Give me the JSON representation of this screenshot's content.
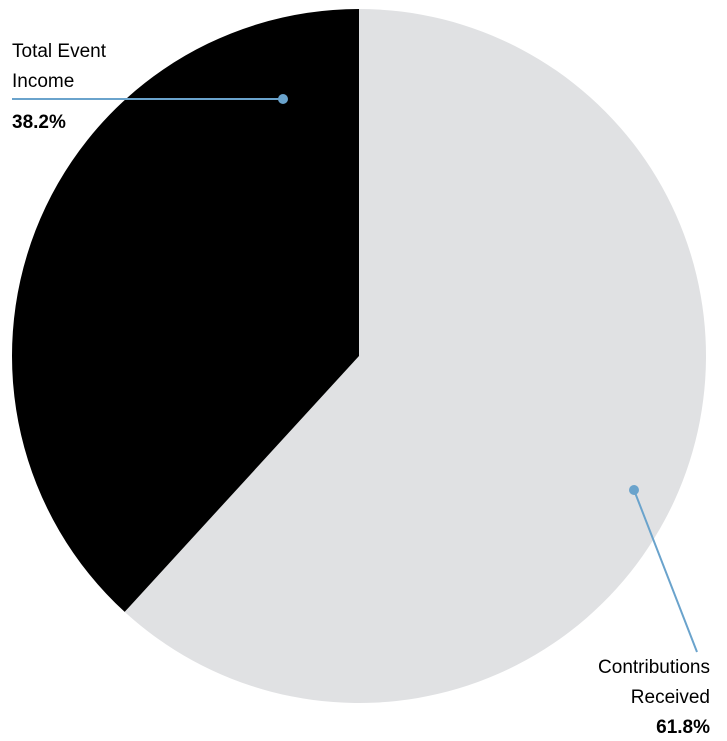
{
  "chart_data": {
    "type": "pie",
    "slices": [
      {
        "label_lines": [
          "Contributions",
          "Received"
        ],
        "value": 61.8,
        "value_label": "61.8%",
        "color": "#e0e1e3"
      },
      {
        "label_lines": [
          "Total Event",
          "Income"
        ],
        "value": 38.2,
        "value_label": "38.2%",
        "color": "#000000"
      }
    ],
    "start": "top, clockwise",
    "leader_line_color": "#6aa3cc",
    "legend": "none"
  }
}
